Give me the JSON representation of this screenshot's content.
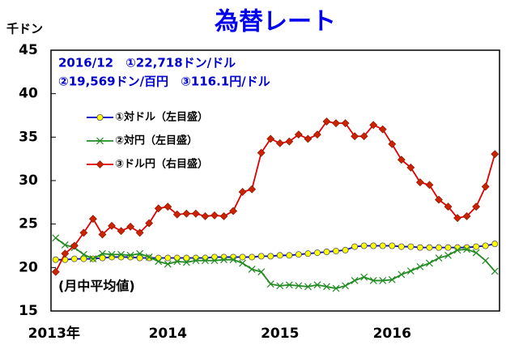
{
  "chart_data": {
    "type": "line",
    "title": "為替レート",
    "y_label": "千ドン",
    "annotations": [
      "2016/12　①22,718ドン/ドル",
      "②19,569ドン/百円　③116.1円/ドル",
      "(月中平均値)"
    ],
    "categories": [
      "2013年",
      null,
      null,
      null,
      null,
      null,
      null,
      null,
      null,
      null,
      null,
      null,
      "2014",
      null,
      null,
      null,
      null,
      null,
      null,
      null,
      null,
      null,
      null,
      null,
      "2015",
      null,
      null,
      null,
      null,
      null,
      null,
      null,
      null,
      null,
      null,
      null,
      "2016",
      null,
      null,
      null,
      null,
      null,
      null,
      null,
      null,
      null,
      null,
      null
    ],
    "ylim": [
      15,
      45
    ],
    "yticks": [
      15,
      20,
      25,
      30,
      35,
      40,
      45
    ],
    "y2lim": [
      80,
      140
    ],
    "series": [
      {
        "name": "①対ドル（左目盛）",
        "color": "#0000cc",
        "marker": "circle",
        "marker_color": "#ffff00",
        "values": [
          20.9,
          20.9,
          21.0,
          21.0,
          21.0,
          21.1,
          21.2,
          21.2,
          21.2,
          21.1,
          21.1,
          21.1,
          21.1,
          21.1,
          21.1,
          21.1,
          21.1,
          21.2,
          21.2,
          21.2,
          21.2,
          21.2,
          21.3,
          21.3,
          21.4,
          21.4,
          21.5,
          21.6,
          21.7,
          21.8,
          21.9,
          22.0,
          22.4,
          22.5,
          22.5,
          22.5,
          22.5,
          22.4,
          22.4,
          22.3,
          22.3,
          22.3,
          22.3,
          22.3,
          22.3,
          22.4,
          22.5,
          22.718
        ]
      },
      {
        "name": "②対円（左目盛）",
        "color": "#228b22",
        "marker": "x",
        "marker_color": "#228b22",
        "values": [
          23.4,
          22.6,
          22.3,
          21.5,
          21.0,
          21.6,
          21.5,
          21.5,
          21.4,
          21.6,
          21.2,
          20.7,
          20.4,
          20.7,
          20.6,
          20.8,
          20.8,
          20.8,
          20.9,
          20.9,
          20.5,
          19.8,
          19.5,
          18.1,
          17.9,
          18.0,
          17.9,
          17.8,
          18.0,
          17.8,
          17.6,
          17.9,
          18.5,
          18.9,
          18.5,
          18.5,
          18.6,
          19.2,
          19.6,
          20.1,
          20.5,
          21.1,
          21.4,
          22.0,
          22.1,
          21.7,
          20.8,
          19.569
        ]
      },
      {
        "name": "③ドル円（右目盛）",
        "color": "#e00000",
        "marker": "diamond",
        "marker_color": "#cc2200",
        "axis": "y2",
        "values": [
          89.0,
          93.2,
          95.0,
          98.0,
          101.2,
          97.6,
          99.6,
          98.4,
          99.4,
          98.0,
          100.2,
          103.6,
          104.0,
          102.2,
          102.4,
          102.4,
          101.8,
          102.0,
          101.8,
          103.0,
          107.4,
          108.0,
          116.4,
          119.6,
          118.6,
          119.0,
          120.6,
          119.6,
          120.6,
          123.6,
          123.2,
          123.2,
          120.2,
          120.2,
          122.8,
          121.8,
          118.4,
          114.8,
          113.0,
          109.6,
          109.0,
          105.6,
          104.0,
          101.4,
          101.8,
          104.0,
          108.6,
          116.1
        ]
      }
    ]
  }
}
